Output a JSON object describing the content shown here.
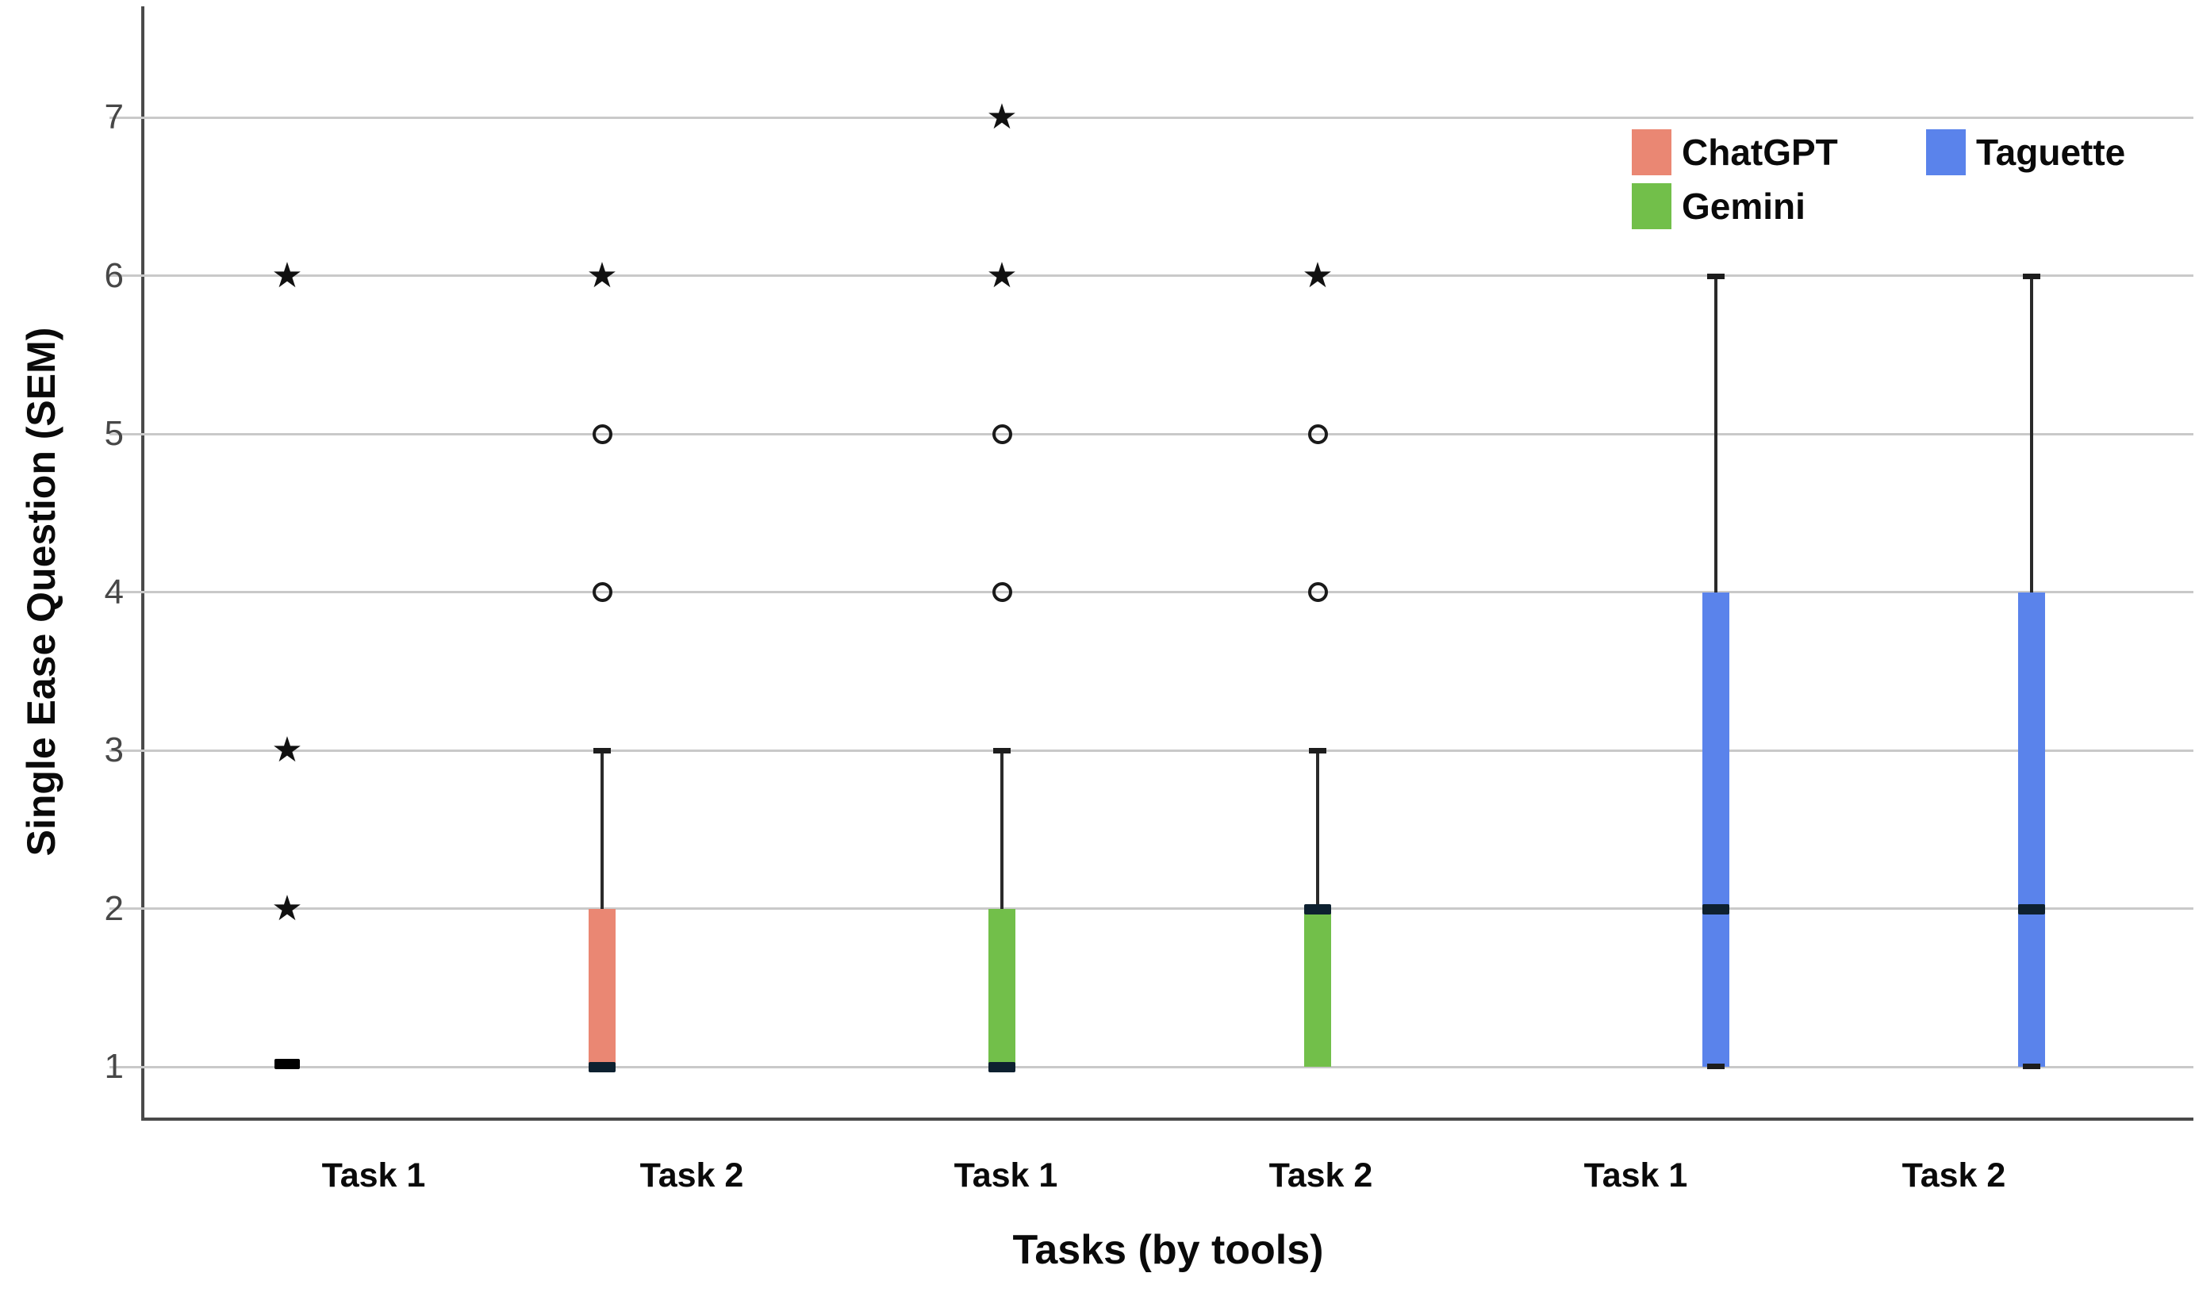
{
  "chart_data": {
    "type": "box",
    "xlabel": "Tasks (by tools)",
    "ylabel": "Single Ease Question (SEM)",
    "ylim": [
      1,
      7
    ],
    "yticks": [
      7,
      6,
      5,
      4,
      3,
      2,
      1
    ],
    "grid": "horizontal-only",
    "legend_position": "top-right-inside",
    "categories": [
      "Task 1",
      "Task 2",
      "Task 1",
      "Task 2",
      "Task 1",
      "Task 2"
    ],
    "legend": [
      {
        "label": "ChatGPT",
        "color": "#EA8773"
      },
      {
        "label": "Gemini",
        "color": "#72BF4A"
      },
      {
        "label": "Taguette",
        "color": "#5A83EB"
      }
    ],
    "boxes": [
      {
        "label": "Task 1",
        "tool": "ChatGPT",
        "q1": 1,
        "median": 1,
        "q3": 1,
        "whisker_low": 1,
        "whisker_high": 1,
        "outliers_star": [
          6,
          3,
          2
        ],
        "outliers_circle": []
      },
      {
        "label": "Task 2",
        "tool": "ChatGPT",
        "q1": 1,
        "median": 1,
        "q3": 2,
        "whisker_low": 1,
        "whisker_high": 3,
        "outliers_star": [
          6
        ],
        "outliers_circle": [
          5,
          4
        ]
      },
      {
        "label": "Task 1",
        "tool": "Gemini",
        "q1": 1,
        "median": 1,
        "q3": 2,
        "whisker_low": 1,
        "whisker_high": 3,
        "outliers_star": [
          7,
          6
        ],
        "outliers_circle": [
          5,
          4
        ]
      },
      {
        "label": "Task 2",
        "tool": "Gemini",
        "q1": 1,
        "median": 2,
        "q3": 2,
        "whisker_low": 1,
        "whisker_high": 3,
        "outliers_star": [
          6
        ],
        "outliers_circle": [
          5,
          4
        ]
      },
      {
        "label": "Task 1",
        "tool": "Taguette",
        "q1": 1,
        "median": 2,
        "q3": 4,
        "whisker_low": 1,
        "whisker_high": 6,
        "outliers_star": [],
        "outliers_circle": []
      },
      {
        "label": "Task 2",
        "tool": "Taguette",
        "q1": 1,
        "median": 2,
        "q3": 4,
        "whisker_low": 1,
        "whisker_high": 6,
        "outliers_star": [],
        "outliers_circle": []
      }
    ],
    "colors": {
      "median": "#0e2130",
      "marker": "#111111",
      "grid": "#c9c9c9",
      "axis": "#4a4a4a",
      "tick_text": "#474747"
    }
  }
}
